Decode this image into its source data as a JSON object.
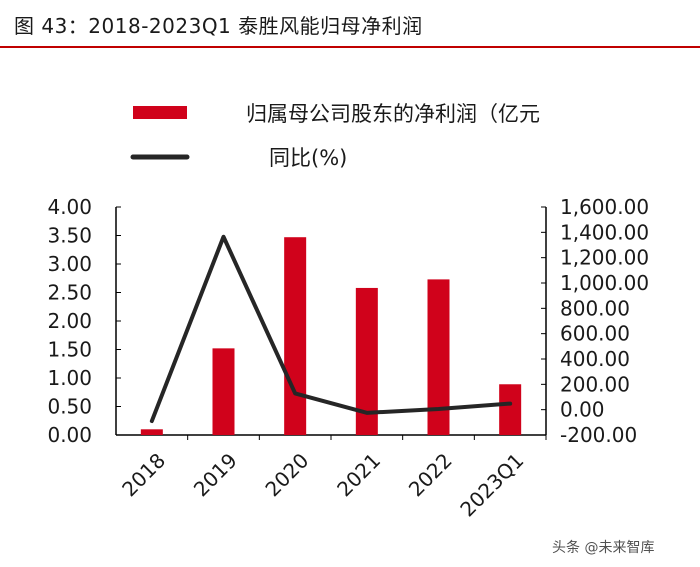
{
  "title": "图 43：2018-2023Q1 泰胜风能归母净利润",
  "watermark": "头条 @未来智库",
  "colors": {
    "bar": "#d0021b",
    "line": "#262626",
    "title_rule": "#c00000"
  },
  "chart_data": {
    "type": "bar",
    "categories": [
      "2018",
      "2019",
      "2020",
      "2021",
      "2022",
      "2023Q1"
    ],
    "series": [
      {
        "name": "归属母公司股东的净利润（亿元",
        "type": "bar",
        "axis": "left",
        "values": [
          0.1,
          1.52,
          3.47,
          2.58,
          2.73,
          0.89
        ]
      },
      {
        "name": "同比(%)",
        "type": "line",
        "axis": "right",
        "values": [
          -90,
          1365,
          128,
          -25,
          5,
          48
        ]
      }
    ],
    "y_left": {
      "ylim": [
        0,
        4
      ],
      "ticks": [
        "0.00",
        "0.50",
        "1.00",
        "1.50",
        "2.00",
        "2.50",
        "3.00",
        "3.50",
        "4.00"
      ]
    },
    "y_right": {
      "ylim": [
        -200,
        1600
      ],
      "ticks": [
        "-200.00",
        "0.00",
        "200.00",
        "400.00",
        "600.00",
        "800.00",
        "1,000.00",
        "1,200.00",
        "1,400.00",
        "1,600.00"
      ]
    },
    "legend_position": "top-left",
    "grid": false
  }
}
